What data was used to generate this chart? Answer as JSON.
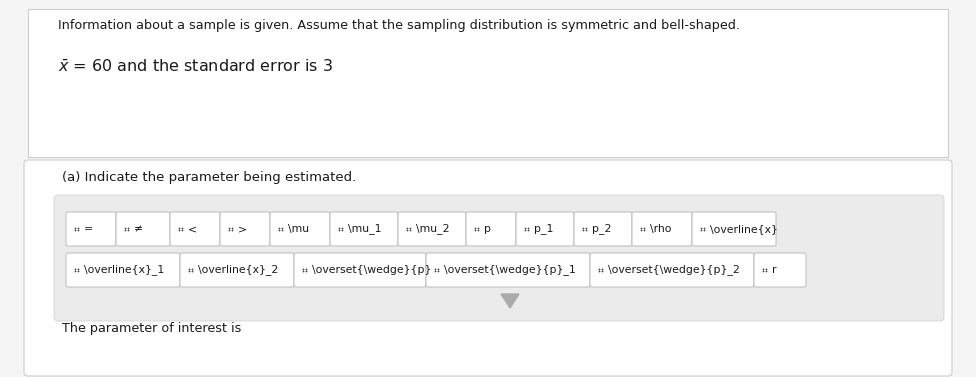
{
  "bg_color": "#f5f5f5",
  "white": "#ffffff",
  "top_border_color": "#cccccc",
  "bottom_border_color": "#cccccc",
  "panel_bg": "#ebebeb",
  "panel_border": "#cccccc",
  "text_color": "#1a1a1a",
  "header_text": "Information about a sample is given. Assume that the sampling distribution is symmetric and bell-shaped.",
  "question_text": "(a) Indicate the parameter being estimated.",
  "bottom_text": "The parameter of interest is",
  "button_bg": "#ffffff",
  "button_border": "#bbbbbb",
  "dot_color": "#444444",
  "row1_labels": [
    "=",
    "≠",
    "<",
    ">",
    "\\mu",
    "\\mu_1",
    "\\mu_2",
    "p",
    "p_1",
    "p_2",
    "\\rho",
    "\\overline{x}"
  ],
  "row2_labels": [
    "\\overline{x}_1",
    "\\overline{x}_2",
    "\\overset{\\wedge}{p}",
    "\\overset{\\wedge}{p}_1",
    "\\overset{\\wedge}{p}_2",
    "r"
  ],
  "row1_widths": [
    46,
    50,
    46,
    46,
    56,
    64,
    64,
    46,
    54,
    54,
    56,
    80
  ],
  "row2_widths": [
    110,
    110,
    128,
    160,
    160,
    48
  ],
  "arrow_color": "#aaaaaa",
  "divider_color": "#cccccc"
}
